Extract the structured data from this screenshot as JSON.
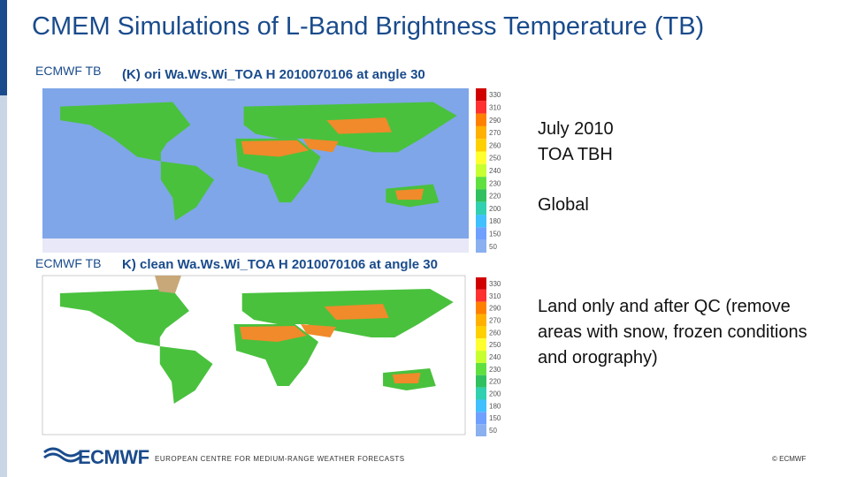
{
  "title": "CMEM Simulations of L-Band Brightness Temperature (TB)",
  "panels": [
    {
      "label": "ECMWF TB",
      "map_title": "(K) ori Wa.Ws.Wi_TOA H 2010070106 at angle 30",
      "colorbar": [
        "330",
        "310",
        "290",
        "270",
        "260",
        "250",
        "240",
        "230",
        "220",
        "200",
        "180",
        "150",
        "50"
      ],
      "notes": [
        "July 2010",
        "TOA TBH",
        "Global"
      ]
    },
    {
      "label": "ECMWF TB",
      "map_title": "K) clean Wa.Ws.Wi_TOA H 2010070106 at angle 30",
      "colorbar": [
        "330",
        "310",
        "290",
        "270",
        "260",
        "250",
        "240",
        "230",
        "220",
        "200",
        "180",
        "150",
        "50"
      ],
      "notes": [
        "Land only and after QC (remove areas with snow, frozen conditions and orography)"
      ]
    }
  ],
  "footer": {
    "logo": "ECMWF",
    "org": "EUROPEAN CENTRE FOR MEDIUM-RANGE WEATHER FORECASTS",
    "copyright": "© ECMWF"
  }
}
